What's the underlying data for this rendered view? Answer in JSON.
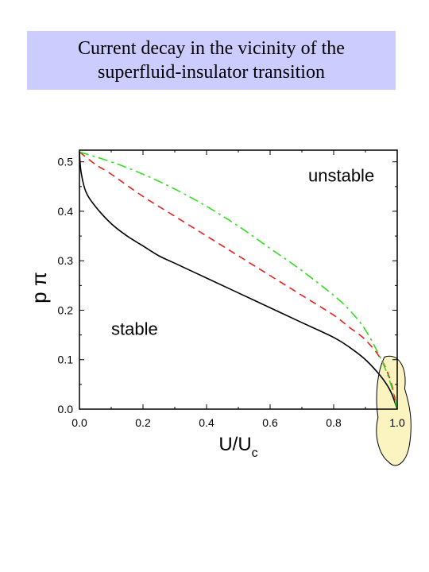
{
  "title": {
    "line1": "Current decay in the vicinity of the",
    "line2": "superfluid-insulator transition"
  },
  "chart_data": {
    "type": "line",
    "xlabel": "U/U",
    "xlabel_sub": "c",
    "ylabel": "p π",
    "xlim": [
      0.0,
      1.0
    ],
    "ylim": [
      0.0,
      0.5236
    ],
    "x_ticks": [
      "0.0",
      "0.2",
      "0.4",
      "0.6",
      "0.8",
      "1.0"
    ],
    "y_ticks": [
      "0.0",
      "0.1",
      "0.2",
      "0.3",
      "0.4",
      "0.5"
    ],
    "grid": false,
    "annotations": [
      {
        "text": "unstable",
        "x": 0.72,
        "y": 0.46
      },
      {
        "text": "stable",
        "x": 0.1,
        "y": 0.15
      }
    ],
    "highlight_region": {
      "x_range": [
        0.93,
        1.05
      ],
      "y_range": [
        -0.12,
        0.11
      ],
      "color": "#fbf3c0"
    },
    "series": [
      {
        "style": "solid",
        "color": "#000000",
        "x": [
          0.0,
          0.005,
          0.02,
          0.05,
          0.1,
          0.15,
          0.2,
          0.25,
          0.3,
          0.4,
          0.5,
          0.6,
          0.7,
          0.8,
          0.85,
          0.9,
          0.95,
          0.98,
          1.0
        ],
        "y": [
          0.52,
          0.48,
          0.44,
          0.41,
          0.375,
          0.35,
          0.33,
          0.31,
          0.295,
          0.265,
          0.235,
          0.205,
          0.175,
          0.145,
          0.125,
          0.1,
          0.065,
          0.035,
          0.0
        ]
      },
      {
        "style": "dashed",
        "color": "#e8201c",
        "x": [
          0.0,
          0.05,
          0.1,
          0.2,
          0.3,
          0.4,
          0.5,
          0.6,
          0.7,
          0.8,
          0.85,
          0.9,
          0.95,
          0.98,
          1.0
        ],
        "y": [
          0.52,
          0.495,
          0.475,
          0.43,
          0.39,
          0.35,
          0.31,
          0.27,
          0.23,
          0.19,
          0.165,
          0.14,
          0.1,
          0.055,
          0.0
        ]
      },
      {
        "style": "dashdot",
        "color": "#33dd22",
        "x": [
          0.0,
          0.1,
          0.2,
          0.3,
          0.4,
          0.5,
          0.6,
          0.7,
          0.8,
          0.85,
          0.9,
          0.95,
          0.98,
          1.0
        ],
        "y": [
          0.52,
          0.5,
          0.475,
          0.445,
          0.41,
          0.37,
          0.325,
          0.28,
          0.23,
          0.2,
          0.16,
          0.1,
          0.05,
          0.0
        ]
      }
    ]
  }
}
